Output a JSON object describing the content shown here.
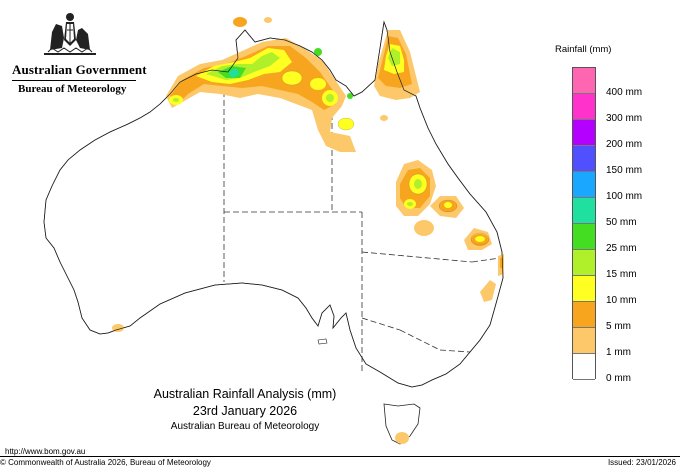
{
  "header": {
    "government": "Australian Government",
    "agency": "Bureau of Meteorology"
  },
  "legend": {
    "title": "Rainfall (mm)",
    "items": [
      {
        "label": "",
        "color": "#ff66b2"
      },
      {
        "label": "400 mm",
        "color": "#ff33cc"
      },
      {
        "label": "300 mm",
        "color": "#b400ff"
      },
      {
        "label": "200 mm",
        "color": "#5050ff"
      },
      {
        "label": "150 mm",
        "color": "#19a7ff"
      },
      {
        "label": "100 mm",
        "color": "#20e0a0"
      },
      {
        "label": "50 mm",
        "color": "#44dd22"
      },
      {
        "label": "25 mm",
        "color": "#b0f02a"
      },
      {
        "label": "15 mm",
        "color": "#ffff22"
      },
      {
        "label": "10 mm",
        "color": "#f7a51e"
      },
      {
        "label": "5 mm",
        "color": "#fdc86a"
      },
      {
        "label": "1 mm",
        "color": "#ffffff"
      },
      {
        "label": "0 mm",
        "color": ""
      }
    ]
  },
  "map_title": {
    "line1": "Australian Rainfall Analysis (mm)",
    "line2": "23rd January 2026",
    "line3": "Australian Bureau of Meteorology"
  },
  "footer": {
    "url": "http://www.bom.gov.au",
    "copyright": "© Commonwealth of Australia 2026, Bureau of Meteorology",
    "issued": "Issued: 23/01/2026"
  }
}
